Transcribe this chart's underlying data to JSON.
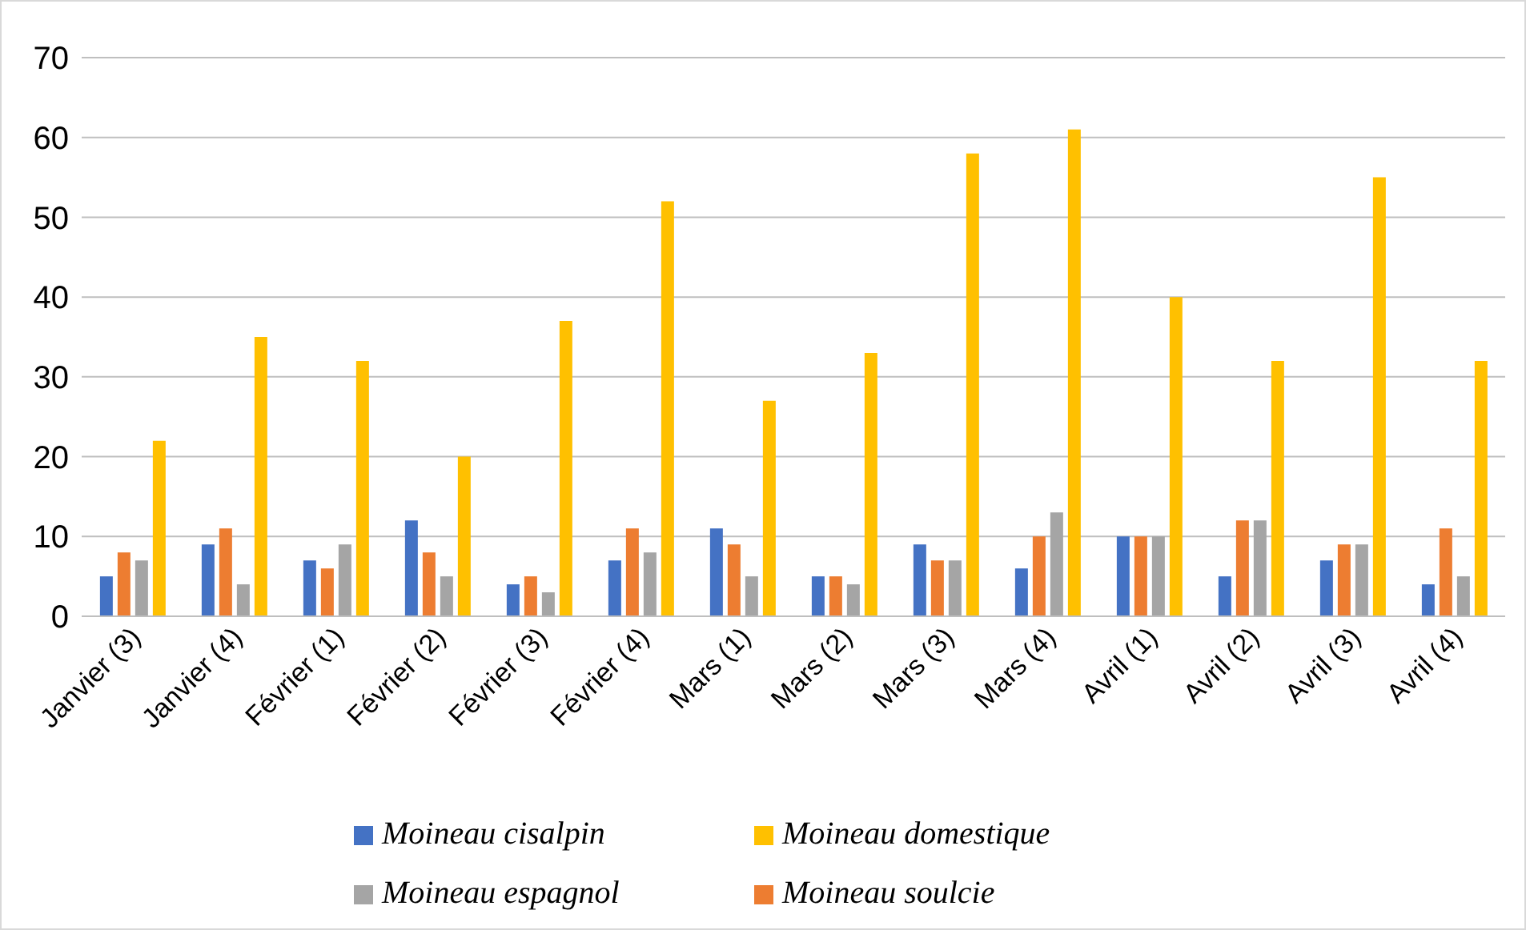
{
  "chart_data": {
    "type": "bar",
    "categories": [
      "Janvier (3)",
      "Janvier (4)",
      "Février (1)",
      "Février (2)",
      "Février (3)",
      "Février (4)",
      "Mars (1)",
      "Mars (2)",
      "Mars (3)",
      "Mars (4)",
      "Avril (1)",
      "Avril (2)",
      "Avril (3)",
      "Avril (4)"
    ],
    "series": [
      {
        "name": "Moineau cisalpin",
        "color": "#4472c4",
        "values": [
          5,
          9,
          7,
          12,
          4,
          7,
          11,
          5,
          9,
          6,
          10,
          5,
          7,
          4
        ]
      },
      {
        "name": "Moineau soulcie",
        "color": "#ed7d31",
        "values": [
          8,
          11,
          6,
          8,
          5,
          11,
          9,
          5,
          7,
          10,
          10,
          12,
          9,
          11
        ]
      },
      {
        "name": "Moineau espagnol",
        "color": "#a5a5a5",
        "values": [
          7,
          4,
          9,
          5,
          3,
          8,
          5,
          4,
          7,
          13,
          10,
          12,
          9,
          5
        ]
      },
      {
        "name": "Moineau domestique",
        "color": "#ffc000",
        "values": [
          22,
          35,
          32,
          20,
          37,
          52,
          27,
          33,
          58,
          61,
          40,
          32,
          55,
          32
        ]
      }
    ],
    "ylim": [
      0,
      70
    ],
    "yticks": [
      0,
      10,
      20,
      30,
      40,
      50,
      60,
      70
    ],
    "grid": "y",
    "legend": "bottom"
  }
}
